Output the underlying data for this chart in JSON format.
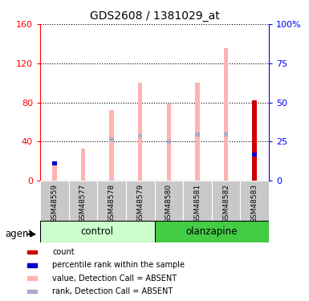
{
  "title": "GDS2608 / 1381029_at",
  "samples": [
    "GSM48559",
    "GSM48577",
    "GSM48578",
    "GSM48579",
    "GSM48580",
    "GSM48581",
    "GSM48582",
    "GSM48583"
  ],
  "groups": {
    "control": [
      0,
      1,
      2,
      3
    ],
    "olanzapine": [
      4,
      5,
      6,
      7
    ]
  },
  "value_absent": [
    20,
    33,
    72,
    100,
    79,
    100,
    135,
    null
  ],
  "rank_absent_height": [
    null,
    null,
    42,
    46,
    40,
    47,
    47,
    null
  ],
  "rank_absent_thickness": 4,
  "count": [
    null,
    null,
    null,
    null,
    null,
    null,
    null,
    82
  ],
  "percentile_rank_val": [
    18,
    null,
    null,
    null,
    null,
    null,
    null,
    27
  ],
  "percentile_rank_thickness": 4,
  "ylim_left": [
    0,
    160
  ],
  "ylim_right": [
    0,
    100
  ],
  "yticks_left": [
    0,
    40,
    80,
    120,
    160
  ],
  "yticks_right": [
    0,
    25,
    50,
    75,
    100
  ],
  "color_count": "#cc0000",
  "color_percentile": "#0000cc",
  "color_value_absent": "#ffb3b3",
  "color_rank_absent": "#aaaacc",
  "color_control_bg": "#ccffcc",
  "color_olanzapine_bg": "#44cc44",
  "color_sample_bg": "#c8c8c8",
  "bar_width": 0.15,
  "legend_items": [
    {
      "label": "count",
      "color": "#cc0000"
    },
    {
      "label": "percentile rank within the sample",
      "color": "#0000cc"
    },
    {
      "label": "value, Detection Call = ABSENT",
      "color": "#ffb3b3"
    },
    {
      "label": "rank, Detection Call = ABSENT",
      "color": "#aaaacc"
    }
  ]
}
